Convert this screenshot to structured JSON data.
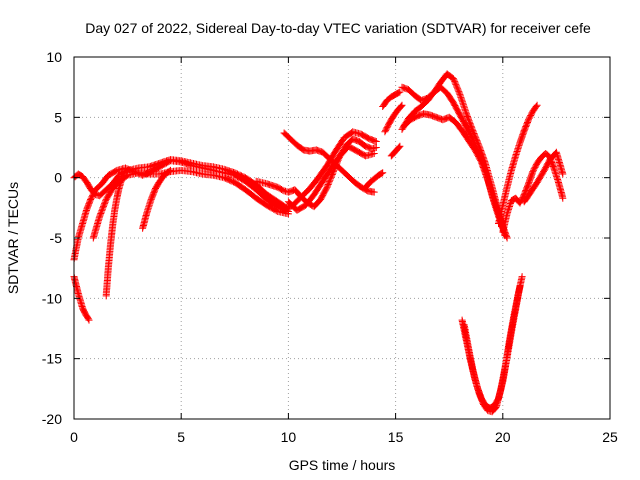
{
  "chart_data": {
    "type": "scatter",
    "title": "Day 027 of 2022, Sidereal Day-to-day VTEC variation (SDTVAR) for receiver cefe",
    "xlabel": "GPS time / hours",
    "ylabel": "SDTVAR / TECUs",
    "xlim": [
      0,
      25
    ],
    "ylim": [
      -20,
      10
    ],
    "xticks": [
      0,
      5,
      10,
      15,
      20,
      25
    ],
    "yticks": [
      -20,
      -15,
      -10,
      -5,
      0,
      5,
      10
    ],
    "xtick_labels": [
      "0",
      "5",
      "10",
      "15",
      "20",
      "25"
    ],
    "ytick_labels": [
      "-20",
      "-15",
      "-10",
      "-5",
      "0",
      "5",
      "10"
    ],
    "grid": true,
    "marker": "+",
    "color": "#ff0000",
    "series": [
      {
        "name": "s1",
        "x": [
          0.0,
          0.2,
          0.4,
          0.6,
          0.8,
          1.0,
          1.3,
          1.6,
          2.0,
          2.4,
          2.8,
          3.2,
          3.6,
          4.0,
          4.5,
          5.0,
          5.5,
          6.0,
          6.5,
          7.0,
          7.5,
          8.0,
          8.5,
          9.0,
          9.5,
          10.0
        ],
        "y": [
          -6.8,
          -5.0,
          -3.8,
          -2.6,
          -1.7,
          -1.0,
          -0.5,
          0.2,
          0.6,
          0.8,
          0.5,
          0.2,
          0.5,
          0.9,
          1.4,
          1.3,
          1.0,
          0.8,
          0.6,
          0.4,
          0.2,
          -0.3,
          -1.0,
          -1.8,
          -2.4,
          -2.8
        ]
      },
      {
        "name": "s2",
        "x": [
          0.0,
          0.2,
          0.4,
          0.6,
          0.8,
          1.0,
          1.2,
          1.5,
          1.8,
          2.1,
          2.5,
          3.0,
          3.5,
          4.0,
          4.5,
          5.0,
          5.5,
          6.0,
          6.5,
          7.0,
          7.5,
          8.0,
          8.5,
          9.0,
          9.5,
          10.0
        ],
        "y": [
          0.0,
          0.3,
          0.1,
          -0.4,
          -1.0,
          -1.4,
          -1.5,
          -1.0,
          -0.5,
          0.2,
          0.6,
          0.8,
          0.9,
          1.2,
          1.5,
          1.4,
          1.2,
          1.0,
          0.9,
          0.7,
          0.4,
          0.0,
          -0.6,
          -1.4,
          -2.0,
          -2.6
        ]
      },
      {
        "name": "s3",
        "x": [
          0.9,
          1.2,
          1.5,
          1.8,
          2.1,
          2.5,
          3.0,
          3.5,
          4.0,
          4.5,
          5.0,
          5.5,
          6.0,
          6.5,
          7.0,
          7.5,
          8.0,
          8.5,
          9.0,
          9.5,
          10.0
        ],
        "y": [
          -5.0,
          -3.2,
          -1.8,
          -0.9,
          -0.3,
          0.2,
          0.4,
          0.3,
          0.3,
          0.5,
          0.6,
          0.5,
          0.3,
          0.2,
          0.0,
          -0.4,
          -1.0,
          -1.7,
          -2.3,
          -2.8,
          -3.0
        ]
      },
      {
        "name": "s4",
        "x": [
          1.5,
          1.6,
          1.7,
          1.8,
          1.9,
          2.0,
          2.1,
          2.2,
          2.3
        ],
        "y": [
          -9.8,
          -7.5,
          -5.6,
          -4.0,
          -2.7,
          -1.7,
          -0.9,
          -0.3,
          0.0
        ]
      },
      {
        "name": "s5",
        "x": [
          3.2,
          3.4,
          3.6,
          3.8,
          4.0,
          4.2,
          4.5
        ],
        "y": [
          -4.2,
          -2.9,
          -1.8,
          -0.9,
          -0.3,
          0.2,
          0.6
        ]
      },
      {
        "name": "s6",
        "x": [
          0.0,
          0.1,
          0.2,
          0.3,
          0.4,
          0.5,
          0.6,
          0.7
        ],
        "y": [
          -8.2,
          -8.9,
          -9.6,
          -10.2,
          -10.8,
          -11.2,
          -11.5,
          -11.8
        ]
      },
      {
        "name": "s7",
        "x": [
          8.5,
          9.0,
          9.5,
          9.8,
          10.0,
          10.3,
          10.6,
          10.9,
          11.2,
          11.5,
          11.8,
          12.1,
          12.4,
          12.7,
          13.0,
          13.3,
          13.6,
          13.9,
          14.1
        ],
        "y": [
          -0.3,
          -0.5,
          -0.8,
          -1.1,
          -1.2,
          -1.0,
          -1.6,
          -2.1,
          -2.4,
          -1.8,
          -0.8,
          0.5,
          1.8,
          2.7,
          3.2,
          3.0,
          2.6,
          2.4,
          2.5
        ]
      },
      {
        "name": "s8",
        "x": [
          9.0,
          9.4,
          9.8,
          10.2,
          10.6,
          11.0,
          11.4,
          11.8,
          12.2,
          12.6,
          13.0,
          13.4,
          13.8,
          14.1
        ],
        "y": [
          -1.6,
          -2.2,
          -2.6,
          -2.3,
          -1.6,
          -0.9,
          0.0,
          1.0,
          2.2,
          3.3,
          3.8,
          3.6,
          3.2,
          3.0
        ]
      },
      {
        "name": "s9",
        "x": [
          10.0,
          10.4,
          10.8,
          11.2,
          11.6,
          12.0,
          12.4,
          12.8,
          13.2,
          13.6,
          14.0
        ],
        "y": [
          -2.0,
          -2.7,
          -2.3,
          -1.4,
          -0.3,
          0.8,
          1.8,
          2.6,
          2.2,
          1.8,
          2.0
        ]
      },
      {
        "name": "s10",
        "x": [
          9.8,
          10.1,
          10.4,
          10.7,
          11.0,
          11.3,
          11.6,
          11.9,
          12.2,
          12.5,
          12.8,
          13.1,
          13.4,
          13.7,
          14.0
        ],
        "y": [
          3.7,
          3.2,
          2.7,
          2.3,
          2.2,
          2.3,
          2.1,
          1.6,
          1.1,
          0.6,
          0.1,
          -0.4,
          -0.8,
          -1.1,
          -1.2
        ]
      },
      {
        "name": "s11",
        "x": [
          13.6,
          13.8,
          14.0,
          14.2,
          14.4
        ],
        "y": [
          -0.8,
          -0.4,
          -0.1,
          0.2,
          0.4
        ]
      },
      {
        "name": "s12",
        "x": [
          14.4,
          14.6,
          14.8,
          15.0,
          15.2
        ],
        "y": [
          5.9,
          6.4,
          6.7,
          6.9,
          7.1
        ]
      },
      {
        "name": "s13",
        "x": [
          14.5,
          14.7,
          14.9,
          15.1,
          15.3
        ],
        "y": [
          3.8,
          4.5,
          5.1,
          5.6,
          6.0
        ]
      },
      {
        "name": "s14",
        "x": [
          14.8,
          15.0,
          15.2
        ],
        "y": [
          1.8,
          2.2,
          2.6
        ]
      },
      {
        "name": "s15",
        "x": [
          15.3,
          15.6,
          15.9,
          16.2,
          16.5,
          16.8,
          17.1,
          17.4,
          17.7,
          18.0,
          18.3,
          18.6,
          18.9,
          19.2,
          19.5,
          19.8,
          20.0
        ],
        "y": [
          7.5,
          7.3,
          6.8,
          6.4,
          6.6,
          7.1,
          7.5,
          7.0,
          6.2,
          5.2,
          4.2,
          3.2,
          2.0,
          0.5,
          -1.5,
          -3.2,
          -4.2
        ]
      },
      {
        "name": "s16",
        "x": [
          15.3,
          15.6,
          15.9,
          16.2,
          16.5,
          16.8,
          17.1,
          17.4,
          17.7,
          18.0,
          18.3,
          18.6,
          18.9,
          19.2,
          19.5,
          19.8,
          20.1
        ],
        "y": [
          4.0,
          4.9,
          5.5,
          5.9,
          6.4,
          7.1,
          7.9,
          8.6,
          8.2,
          6.9,
          5.3,
          3.9,
          2.6,
          1.1,
          -0.8,
          -2.8,
          -4.8
        ]
      },
      {
        "name": "s17",
        "x": [
          15.4,
          15.7,
          16.0,
          16.3,
          16.6,
          16.9,
          17.2,
          17.5,
          17.8,
          18.1,
          18.4,
          18.7,
          19.0,
          19.3,
          19.6,
          19.9,
          20.2
        ],
        "y": [
          4.3,
          4.8,
          5.1,
          5.3,
          5.2,
          5.0,
          4.8,
          5.0,
          4.6,
          3.9,
          3.1,
          2.3,
          1.3,
          -0.2,
          -1.9,
          -3.5,
          -5.0
        ]
      },
      {
        "name": "s18",
        "x": [
          19.8,
          20.0,
          20.2,
          20.4,
          20.6,
          20.8,
          21.0,
          21.2,
          21.4,
          21.6
        ],
        "y": [
          -3.8,
          -2.3,
          -0.8,
          0.6,
          1.8,
          2.9,
          3.9,
          4.8,
          5.5,
          6.0
        ]
      },
      {
        "name": "s19",
        "x": [
          20.0,
          20.2,
          20.4,
          20.6,
          20.8,
          21.0,
          21.2,
          21.4,
          21.6,
          21.8,
          22.0,
          22.2,
          22.4,
          22.6,
          22.8
        ],
        "y": [
          -4.5,
          -3.0,
          -1.9,
          -1.7,
          -2.1,
          -1.4,
          -0.5,
          0.5,
          1.2,
          1.7,
          2.0,
          1.7,
          0.7,
          -0.4,
          -1.7
        ]
      },
      {
        "name": "s20",
        "x": [
          21.0,
          21.3,
          21.6,
          21.9,
          22.2,
          22.5,
          22.8
        ],
        "y": [
          -2.0,
          -1.2,
          -0.4,
          0.5,
          1.5,
          2.1,
          0.3
        ]
      },
      {
        "name": "s21",
        "x": [
          18.1,
          18.3,
          18.5,
          18.7,
          18.9,
          19.1,
          19.3,
          19.5,
          19.7,
          19.9,
          20.1,
          20.3,
          20.5,
          20.7,
          20.9
        ],
        "y": [
          -11.8,
          -13.5,
          -15.2,
          -16.7,
          -17.9,
          -18.8,
          -19.3,
          -19.4,
          -19.0,
          -17.6,
          -15.8,
          -13.6,
          -11.6,
          -9.8,
          -8.2
        ]
      },
      {
        "name": "s22",
        "x": [
          18.2,
          18.4,
          18.6,
          18.8,
          19.0,
          19.2,
          19.4,
          19.6,
          19.8,
          20.0,
          20.2,
          20.4,
          20.6,
          20.8
        ],
        "y": [
          -12.2,
          -14.1,
          -15.9,
          -17.3,
          -18.3,
          -18.9,
          -19.1,
          -18.9,
          -18.3,
          -16.9,
          -14.9,
          -12.8,
          -10.9,
          -9.0
        ]
      }
    ]
  }
}
